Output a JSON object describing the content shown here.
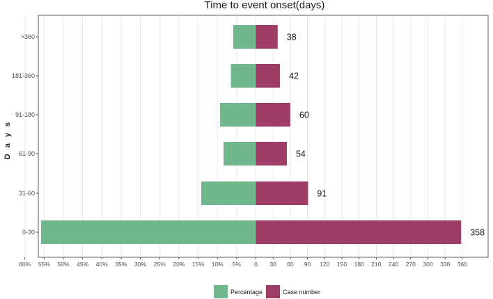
{
  "chart_data": {
    "type": "bar",
    "orientation": "horizontal",
    "layout": "diverging",
    "title": "Time to event onset(days)",
    "ylabel": "D a y s",
    "xlabel": "",
    "categories": [
      "0-30",
      "31-60",
      "61-90",
      "91-180",
      "181-360",
      ">360"
    ],
    "series": [
      {
        "name": "Percentage",
        "color": "#72b68d",
        "direction": "left",
        "unit": "%",
        "values": [
          55.8,
          14.2,
          8.4,
          9.3,
          6.5,
          5.9
        ]
      },
      {
        "name": "Case number",
        "color": "#a03d67",
        "direction": "right",
        "unit": "count",
        "values": [
          358,
          91,
          54,
          60,
          42,
          38
        ]
      }
    ],
    "data_labels": [
      "358",
      "91",
      "54",
      "60",
      "42",
      "38"
    ],
    "left_ticks": [
      "60%",
      "55%",
      "50%",
      "45%",
      "40%",
      "35%",
      "30%",
      "25%",
      "20%",
      "15%",
      "10%",
      "5%"
    ],
    "right_ticks": [
      "0",
      "30",
      "60",
      "90",
      "120",
      "150",
      "180",
      "210",
      "240",
      "270",
      "300",
      "330",
      "360"
    ],
    "left_range": [
      0,
      60
    ],
    "right_range": [
      0,
      360
    ],
    "grid": true,
    "legend_position": "bottom"
  }
}
